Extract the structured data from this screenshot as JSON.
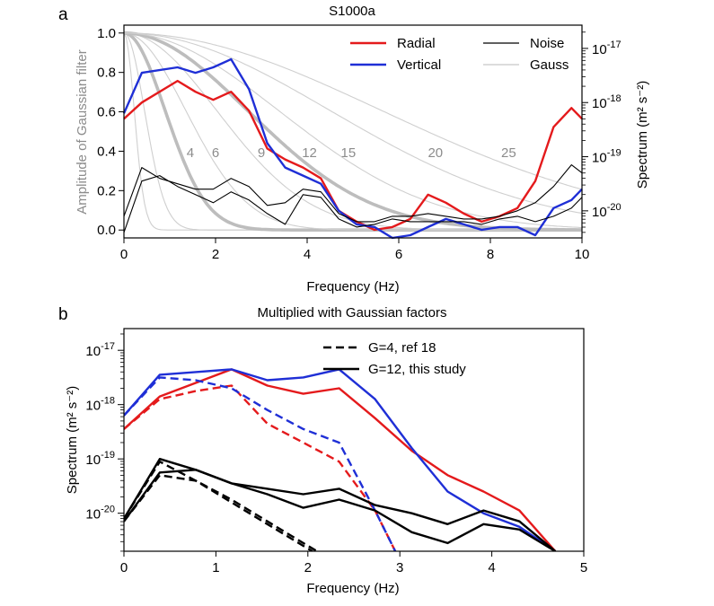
{
  "chart_data": [
    {
      "panel": "a",
      "type": "line",
      "title": "S1000a",
      "xlabel": "Frequency (Hz)",
      "ylabel_left": "Amplitude of Gaussian filter",
      "ylabel_right": "Spectrum (m² s⁻²)",
      "xlim": [
        0,
        10
      ],
      "ylim_left": [
        -0.04,
        1.04
      ],
      "ylim_right_log10": [
        -20.5,
        -16.57
      ],
      "x_ticks": [
        0,
        2,
        4,
        6,
        8,
        10
      ],
      "x_tick_labels": [
        "0",
        "2",
        "4",
        "6",
        "8",
        "10"
      ],
      "y_left_ticks": [
        0.0,
        0.2,
        0.4,
        0.6,
        0.8,
        1.0
      ],
      "y_left_tick_labels": [
        "0.0",
        "0.2",
        "0.4",
        "0.6",
        "0.8",
        "1.0"
      ],
      "y_right_ticks_log10": [
        -20,
        -19,
        -18,
        -17
      ],
      "y_right_tick_labels": [
        "-20",
        "-19",
        "-18",
        "-17"
      ],
      "y_right_tick_base": "10",
      "legend": [
        {
          "label": "Radial",
          "color": "#e41a1c",
          "kind": "thick"
        },
        {
          "label": "Vertical",
          "color": "#1f2fd6",
          "kind": "thick"
        },
        {
          "label": "Noise",
          "color": "#000000",
          "kind": "thin"
        },
        {
          "label": "Gauss",
          "color": "#c8c8c8",
          "kind": "thin"
        }
      ],
      "gauss_G": [
        1,
        2,
        4,
        6,
        9,
        12,
        15,
        20,
        25
      ],
      "gauss_annotations": [
        {
          "G": 4,
          "text": "4",
          "x": 1.45
        },
        {
          "G": 6,
          "text": "6",
          "x": 2.0
        },
        {
          "G": 9,
          "text": "9",
          "x": 3.0
        },
        {
          "G": 12,
          "text": "12",
          "x": 4.05
        },
        {
          "G": 15,
          "text": "15",
          "x": 4.9
        },
        {
          "G": 20,
          "text": "20",
          "x": 6.8
        },
        {
          "G": 25,
          "text": "25",
          "x": 8.4
        }
      ],
      "gauss_annotation_y": 0.37,
      "series": [
        {
          "name": "Radial",
          "color": "#e41a1c",
          "x": [
            0,
            0.39,
            1.17,
            1.56,
            1.95,
            2.34,
            2.73,
            3.13,
            3.52,
            3.91,
            4.3,
            4.69,
            5.08,
            5.47,
            5.86,
            6.25,
            6.64,
            7.03,
            7.42,
            7.81,
            8.2,
            8.59,
            8.98,
            9.38,
            9.77,
            10
          ],
          "log10": [
            -18.3,
            -18.0,
            -17.6,
            -17.8,
            -17.95,
            -17.8,
            -18.15,
            -18.85,
            -19.05,
            -19.2,
            -19.4,
            -20.0,
            -20.2,
            -20.35,
            -20.3,
            -20.15,
            -19.7,
            -19.85,
            -20.05,
            -20.2,
            -20.1,
            -19.95,
            -19.45,
            -18.45,
            -18.1,
            -18.3
          ]
        },
        {
          "name": "Vertical",
          "color": "#1f2fd6",
          "x": [
            0,
            0.39,
            1.17,
            1.56,
            1.95,
            2.34,
            2.73,
            3.13,
            3.52,
            3.91,
            4.3,
            4.69,
            5.08,
            5.47,
            5.86,
            6.25,
            6.64,
            7.03,
            7.42,
            7.81,
            8.2,
            8.59,
            8.98,
            9.38,
            9.77,
            10
          ],
          "log10": [
            -18.2,
            -17.45,
            -17.35,
            -17.45,
            -17.35,
            -17.2,
            -17.75,
            -18.75,
            -19.2,
            -19.35,
            -19.5,
            -20.0,
            -20.25,
            -20.3,
            -20.5,
            -20.45,
            -20.3,
            -20.15,
            -20.25,
            -20.35,
            -20.3,
            -20.3,
            -20.45,
            -19.95,
            -19.8,
            -19.6
          ]
        },
        {
          "name": "Noise-radial",
          "color": "#000000",
          "x": [
            0,
            0.39,
            0.78,
            1.17,
            1.56,
            1.95,
            2.34,
            2.73,
            3.13,
            3.52,
            3.91,
            4.3,
            4.69,
            5.08,
            5.47,
            5.86,
            6.25,
            6.64,
            7.03,
            7.42,
            7.81,
            8.2,
            8.59,
            8.98,
            9.38,
            9.77,
            10
          ],
          "log10": [
            -20.1,
            -19.2,
            -19.4,
            -19.5,
            -19.6,
            -19.6,
            -19.4,
            -19.55,
            -19.9,
            -19.85,
            -19.6,
            -19.65,
            -20.05,
            -20.2,
            -20.2,
            -20.1,
            -20.1,
            -20.05,
            -20.1,
            -20.15,
            -20.15,
            -20.1,
            -20.0,
            -19.85,
            -19.55,
            -19.15,
            -19.3
          ]
        },
        {
          "name": "Noise-vertical",
          "color": "#000000",
          "x": [
            0,
            0.39,
            0.78,
            1.17,
            1.56,
            1.95,
            2.34,
            2.73,
            3.13,
            3.52,
            3.91,
            4.3,
            4.69,
            5.08,
            5.47,
            5.86,
            6.25,
            6.64,
            7.03,
            7.42,
            7.81,
            8.2,
            8.59,
            8.98,
            9.38,
            9.77,
            10
          ],
          "log10": [
            -20.4,
            -19.45,
            -19.35,
            -19.55,
            -19.7,
            -19.85,
            -19.65,
            -19.8,
            -20.05,
            -20.25,
            -19.7,
            -19.75,
            -20.15,
            -20.3,
            -20.25,
            -20.15,
            -20.2,
            -20.2,
            -20.2,
            -20.2,
            -20.25,
            -20.15,
            -20.1,
            -20.2,
            -20.1,
            -19.95,
            -19.75
          ]
        }
      ]
    },
    {
      "panel": "b",
      "type": "line",
      "title": "Multiplied with Gaussian factors",
      "xlabel": "Frequency (Hz)",
      "ylabel": "Spectrum (m² s⁻²)",
      "xlim": [
        0,
        5
      ],
      "ylim_log10": [
        -20.7,
        -16.6
      ],
      "x_ticks": [
        0,
        1,
        2,
        3,
        4,
        5
      ],
      "x_tick_labels": [
        "0",
        "1",
        "2",
        "3",
        "4",
        "5"
      ],
      "y_ticks_log10": [
        -20,
        -19,
        -18,
        -17
      ],
      "y_tick_labels": [
        "-20",
        "-19",
        "-18",
        "-17"
      ],
      "y_tick_base": "10",
      "legend": [
        {
          "label": "G=4, ref 18",
          "style": "dashed"
        },
        {
          "label": "G=12, this study",
          "style": "solid"
        }
      ],
      "series": [
        {
          "name": "Radial G=12",
          "color": "#e41a1c",
          "style": "solid",
          "x": [
            0,
            0.39,
            0.78,
            1.17,
            1.56,
            1.95,
            2.34,
            2.73,
            3.13,
            3.52,
            3.91,
            4.3,
            4.69
          ],
          "log10": [
            -18.45,
            -17.85,
            -17.6,
            -17.35,
            -17.65,
            -17.8,
            -17.7,
            -18.25,
            -18.85,
            -19.3,
            -19.6,
            -19.95,
            -20.7
          ]
        },
        {
          "name": "Vertical G=12",
          "color": "#1f2fd6",
          "style": "solid",
          "x": [
            0,
            0.39,
            0.78,
            1.17,
            1.56,
            1.95,
            2.34,
            2.73,
            3.13,
            3.52,
            3.91,
            4.3,
            4.69
          ],
          "log10": [
            -18.2,
            -17.45,
            -17.4,
            -17.35,
            -17.55,
            -17.5,
            -17.35,
            -17.9,
            -18.8,
            -19.6,
            -20.0,
            -20.25,
            -20.7
          ]
        },
        {
          "name": "Radial G=4",
          "color": "#e41a1c",
          "style": "dashed",
          "x": [
            0,
            0.39,
            0.78,
            1.17,
            1.56,
            1.95,
            2.34,
            2.73,
            2.95
          ],
          "log10": [
            -18.45,
            -17.9,
            -17.75,
            -17.65,
            -18.35,
            -18.7,
            -19.05,
            -19.95,
            -20.7
          ]
        },
        {
          "name": "Vertical G=4",
          "color": "#1f2fd6",
          "style": "dashed",
          "x": [
            0,
            0.39,
            0.78,
            1.17,
            1.56,
            1.95,
            2.34,
            2.73,
            2.95
          ],
          "log10": [
            -18.2,
            -17.5,
            -17.55,
            -17.7,
            -18.1,
            -18.45,
            -18.7,
            -19.95,
            -20.7
          ]
        },
        {
          "name": "Noise radial G=12",
          "color": "#000000",
          "style": "solid",
          "x": [
            0,
            0.39,
            0.78,
            1.17,
            1.56,
            1.95,
            2.34,
            2.73,
            3.13,
            3.52,
            3.91,
            4.3,
            4.69
          ],
          "log10": [
            -20.1,
            -19.0,
            -19.2,
            -19.45,
            -19.55,
            -19.65,
            -19.55,
            -19.85,
            -20.0,
            -20.2,
            -19.95,
            -20.15,
            -20.7
          ]
        },
        {
          "name": "Noise vertical G=12",
          "color": "#000000",
          "style": "solid",
          "x": [
            0,
            0.39,
            0.78,
            1.17,
            1.56,
            1.95,
            2.34,
            2.73,
            3.13,
            3.52,
            3.91,
            4.3,
            4.69
          ],
          "log10": [
            -20.15,
            -19.25,
            -19.2,
            -19.45,
            -19.65,
            -19.9,
            -19.75,
            -19.95,
            -20.35,
            -20.55,
            -20.2,
            -20.3,
            -20.7
          ]
        },
        {
          "name": "Noise radial G=4",
          "color": "#000000",
          "style": "dashed",
          "x": [
            0,
            0.39,
            0.78,
            1.17,
            1.56,
            1.95,
            2.1
          ],
          "log10": [
            -20.1,
            -19.05,
            -19.4,
            -19.75,
            -20.15,
            -20.55,
            -20.7
          ]
        },
        {
          "name": "Noise vertical G=4",
          "color": "#000000",
          "style": "dashed",
          "x": [
            0,
            0.39,
            0.78,
            1.17,
            1.56,
            1.95,
            2.05
          ],
          "log10": [
            -20.15,
            -19.3,
            -19.4,
            -19.8,
            -20.2,
            -20.6,
            -20.7
          ]
        }
      ]
    }
  ]
}
